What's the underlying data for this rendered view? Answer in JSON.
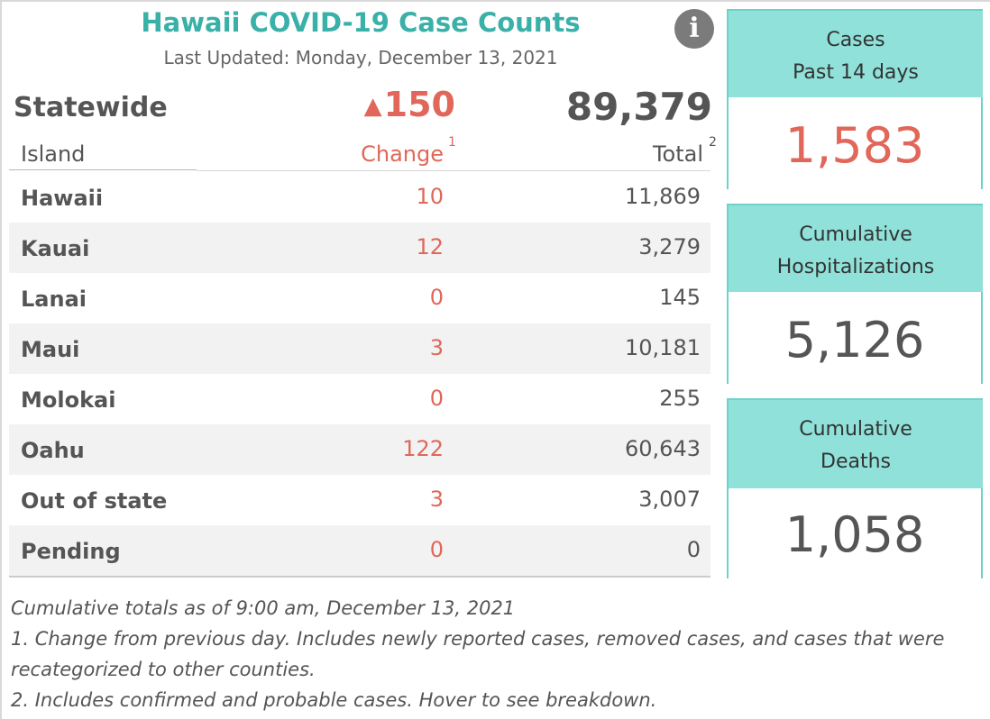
{
  "title": "Hawaii COVID-19 Case Counts",
  "last_updated": "Last Updated: Monday, December 13, 2021",
  "info_icon": {
    "name": "info-icon",
    "glyph": "i"
  },
  "statewide": {
    "label": "Statewide",
    "change_arrow": "▲",
    "change": "150",
    "total": "89,379"
  },
  "table": {
    "headers": {
      "island": "Island",
      "change": "Change",
      "change_note": "1",
      "total": "Total",
      "total_note": "2"
    },
    "rows": [
      {
        "island": "Hawaii",
        "change": "10",
        "total": "11,869"
      },
      {
        "island": "Kauai",
        "change": "12",
        "total": "3,279"
      },
      {
        "island": "Lanai",
        "change": "0",
        "total": "145"
      },
      {
        "island": "Maui",
        "change": "3",
        "total": "10,181"
      },
      {
        "island": "Molokai",
        "change": "0",
        "total": "255"
      },
      {
        "island": "Oahu",
        "change": "122",
        "total": "60,643"
      },
      {
        "island": "Out of state",
        "change": "3",
        "total": "3,007"
      },
      {
        "island": "Pending",
        "change": "0",
        "total": "0"
      }
    ]
  },
  "cards": [
    {
      "line1": "Cases",
      "line2": "Past 14 days",
      "value": "1,583",
      "value_color": "#e0675a"
    },
    {
      "line1": "Cumulative",
      "line2": "Hospitalizations",
      "value": "5,126",
      "value_color": "#555555"
    },
    {
      "line1": "Cumulative",
      "line2": "Deaths",
      "value": "1,058",
      "value_color": "#555555"
    }
  ],
  "notes": {
    "asof": "Cumulative totals as of 9:00 am, December 13, 2021",
    "note1": "1. Change from previous day. Includes newly reported cases, removed cases, and cases that were recategorized to other counties.",
    "note2": "2. Includes confirmed and probable cases. Hover to see breakdown."
  },
  "colors": {
    "title": "#3ab1a8",
    "change": "#e0675a",
    "card_header": "#8fe1d9",
    "card_border": "#6cd3c9",
    "text": "#555555"
  }
}
